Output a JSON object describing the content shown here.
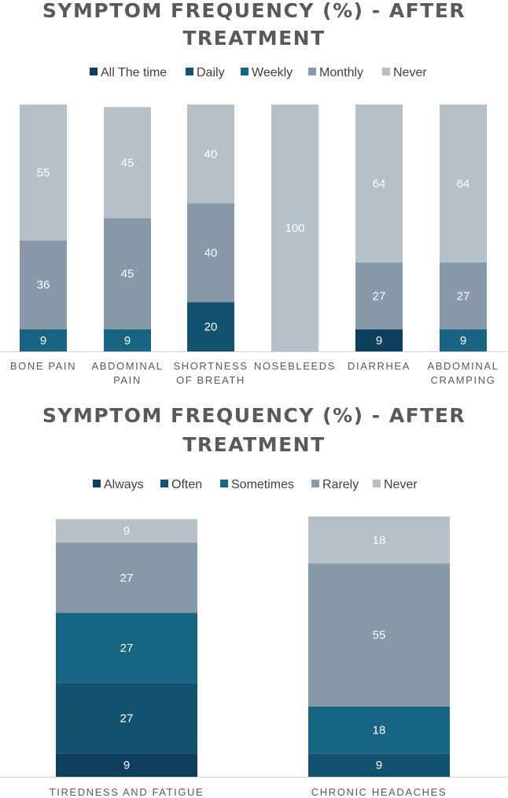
{
  "chart_data": [
    {
      "type": "bar",
      "stacked": true,
      "title": [
        "SYMPTOM FREQUENCY (%) - AFTER",
        "TREATMENT"
      ],
      "legend_position": "top",
      "ylim": [
        0,
        100
      ],
      "categories": [
        [
          "BONE PAIN"
        ],
        [
          "ABDOMINAL",
          "PAIN"
        ],
        [
          "SHORTNESS",
          "OF BREATH"
        ],
        [
          "NOSEBLEEDS"
        ],
        [
          "DIARRHEA"
        ],
        [
          "ABDOMINAL",
          "CRAMPING"
        ]
      ],
      "series": [
        {
          "name": "All The time",
          "color": "#0e3f5c",
          "values": [
            0,
            0,
            0,
            0,
            9,
            0
          ]
        },
        {
          "name": "Daily",
          "color": "#14536f",
          "values": [
            0,
            0,
            20,
            0,
            0,
            0
          ]
        },
        {
          "name": "Weekly",
          "color": "#186583",
          "values": [
            9,
            9,
            0,
            0,
            0,
            9
          ]
        },
        {
          "name": "Monthly",
          "color": "#8899aa",
          "values": [
            36,
            45,
            40,
            0,
            27,
            27
          ]
        },
        {
          "name": "Never",
          "color": "#b6c0c9",
          "values": [
            55,
            45,
            40,
            100,
            64,
            64
          ]
        }
      ]
    },
    {
      "type": "bar",
      "stacked": true,
      "title": [
        "SYMPTOM FREQUENCY (%) - AFTER",
        "TREATMENT"
      ],
      "legend_position": "top",
      "ylim": [
        0,
        100
      ],
      "categories": [
        [
          "TIREDNESS AND FATIGUE"
        ],
        [
          "CHRONIC HEADACHES"
        ]
      ],
      "series": [
        {
          "name": "Always",
          "color": "#0e3f5c",
          "values": [
            9,
            0
          ]
        },
        {
          "name": "Often",
          "color": "#14536f",
          "values": [
            27,
            9
          ]
        },
        {
          "name": "Sometimes",
          "color": "#186583",
          "values": [
            27,
            18
          ]
        },
        {
          "name": "Rarely",
          "color": "#8899aa",
          "values": [
            27,
            55
          ]
        },
        {
          "name": "Never",
          "color": "#b6c0c9",
          "values": [
            9,
            18
          ]
        }
      ]
    }
  ]
}
